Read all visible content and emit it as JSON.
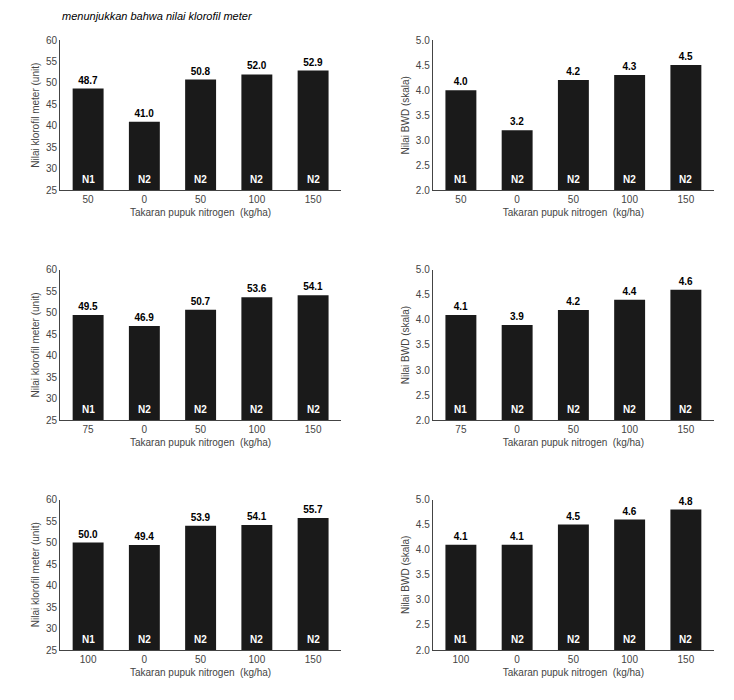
{
  "title": "menunjukkan bahwa nilai klorofil meter",
  "chart_data": [
    {
      "type": "bar",
      "categories": [
        "50",
        "0",
        "50",
        "100",
        "150"
      ],
      "values": [
        48.7,
        41.0,
        50.8,
        52.0,
        52.9
      ],
      "value_labels": [
        "48.7",
        "41.0",
        "50.8",
        "52.0",
        "52.9"
      ],
      "annotations": [
        "N1",
        "N2",
        "N2",
        "N2",
        "N2"
      ],
      "color": "#1a1a1a",
      "xlabel": "Takaran pupuk nitrogen  (kg/ha)",
      "ylabel": "Nilai klorofil meter (unit)",
      "ylim": [
        25,
        60
      ],
      "yticks": [
        25,
        30,
        35,
        40,
        45,
        50,
        55,
        60
      ],
      "grid": false,
      "data_labels": true
    },
    {
      "type": "bar",
      "categories": [
        "50",
        "0",
        "50",
        "100",
        "150"
      ],
      "values": [
        4.0,
        3.2,
        4.2,
        4.3,
        4.5
      ],
      "value_labels": [
        "4.0",
        "3.2",
        "4.2",
        "4.3",
        "4.5"
      ],
      "annotations": [
        "N1",
        "N2",
        "N2",
        "N2",
        "N2"
      ],
      "color": "#1a1a1a",
      "xlabel": "Takaran pupuk nitrogen  (kg/ha)",
      "ylabel": "Nilai BWD (skala)",
      "ylim": [
        2.0,
        5.0
      ],
      "yticks": [
        {
          "value": 2.0,
          "label": "2.0"
        },
        2.5,
        {
          "value": 3.0,
          "label": "3.0"
        },
        3.5,
        {
          "value": 4.0,
          "label": "4.0"
        },
        4.5,
        {
          "value": 5.0,
          "label": "5.0"
        }
      ],
      "grid": false,
      "data_labels": true
    },
    {
      "type": "bar",
      "categories": [
        "75",
        "0",
        "50",
        "100",
        "150"
      ],
      "values": [
        49.5,
        46.9,
        50.7,
        53.6,
        54.1
      ],
      "value_labels": [
        "49.5",
        "46.9",
        "50.7",
        "53.6",
        "54.1"
      ],
      "annotations": [
        "N1",
        "N2",
        "N2",
        "N2",
        "N2"
      ],
      "color": "#1a1a1a",
      "xlabel": "Takaran pupuk nitrogen  (kg/ha)",
      "ylabel": "Nilai klorofil meter (unit)",
      "ylim": [
        25,
        60
      ],
      "yticks": [
        25,
        30,
        35,
        40,
        45,
        50,
        55,
        60
      ],
      "grid": false,
      "data_labels": true
    },
    {
      "type": "bar",
      "categories": [
        "75",
        "0",
        "50",
        "100",
        "150"
      ],
      "values": [
        4.1,
        3.9,
        4.2,
        4.4,
        4.6
      ],
      "value_labels": [
        "4.1",
        "3.9",
        "4.2",
        "4.4",
        "4.6"
      ],
      "annotations": [
        "N1",
        "N2",
        "N2",
        "N2",
        "N2"
      ],
      "color": "#1a1a1a",
      "xlabel": "Takaran pupuk nitrogen  (kg/ha)",
      "ylabel": "Nilai BWD (skala)",
      "ylim": [
        2.0,
        5.0
      ],
      "yticks": [
        {
          "value": 2.0,
          "label": "2.0"
        },
        2.5,
        {
          "value": 3.0,
          "label": "3.0"
        },
        3.5,
        {
          "value": 4.0,
          "label": "4.0"
        },
        4.5,
        {
          "value": 5.0,
          "label": "5.0"
        }
      ],
      "grid": false,
      "data_labels": true
    },
    {
      "type": "bar",
      "categories": [
        "100",
        "0",
        "50",
        "100",
        "150"
      ],
      "values": [
        50.0,
        49.4,
        53.9,
        54.1,
        55.7
      ],
      "value_labels": [
        "50.0",
        "49.4",
        "53.9",
        "54.1",
        "55.7"
      ],
      "annotations": [
        "N1",
        "N2",
        "N2",
        "N2",
        "N2"
      ],
      "color": "#1a1a1a",
      "xlabel": "Takaran pupuk nitrogen  (kg/ha)",
      "ylabel": "Nilai klorofil meter (unit)",
      "ylim": [
        25,
        60
      ],
      "yticks": [
        25,
        30,
        35,
        40,
        45,
        50,
        55,
        60
      ],
      "grid": false,
      "data_labels": true
    },
    {
      "type": "bar",
      "categories": [
        "100",
        "0",
        "50",
        "100",
        "150"
      ],
      "values": [
        4.1,
        4.1,
        4.5,
        4.6,
        4.8
      ],
      "value_labels": [
        "4.1",
        "4.1",
        "4.5",
        "4.6",
        "4.8"
      ],
      "annotations": [
        "N1",
        "N2",
        "N2",
        "N2",
        "N2"
      ],
      "color": "#1a1a1a",
      "xlabel": "Takaran pupuk nitrogen  (kg/ha)",
      "ylabel": "Nilai BWD (skala)",
      "ylim": [
        2.0,
        5.0
      ],
      "yticks": [
        {
          "value": 2.0,
          "label": "2.0"
        },
        2.5,
        {
          "value": 3.0,
          "label": "3.0"
        },
        3.5,
        {
          "value": 4.0,
          "label": "4.0"
        },
        4.5,
        {
          "value": 5.0,
          "label": "5.0"
        }
      ],
      "grid": false,
      "data_labels": true
    }
  ]
}
